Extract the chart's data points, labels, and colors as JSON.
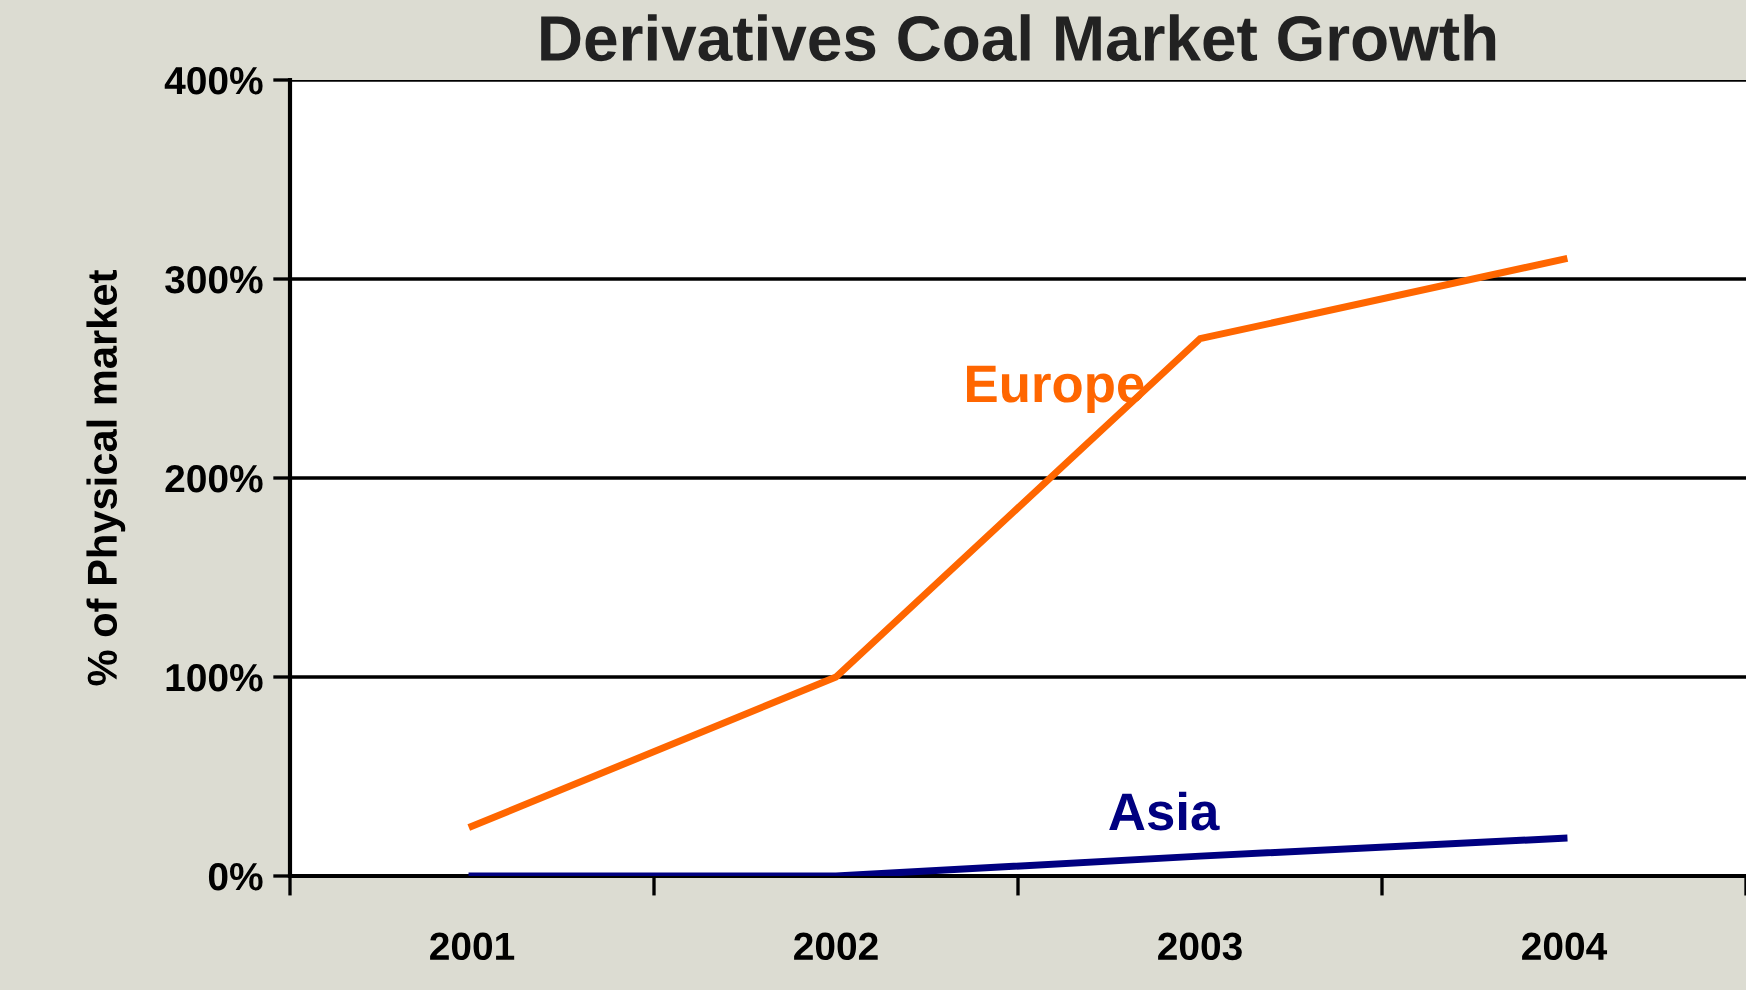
{
  "chart_data": {
    "type": "line",
    "title": "Derivatives Coal Market Growth",
    "ylabel": "% of Physical market",
    "categories": [
      "2001",
      "2002",
      "2003",
      "2004"
    ],
    "series": [
      {
        "name": "Europe",
        "color": "#ff6600",
        "values": [
          25,
          100,
          270,
          310
        ]
      },
      {
        "name": "Asia",
        "color": "#000080",
        "values": [
          0,
          0,
          10,
          19
        ]
      }
    ],
    "ylim": [
      0,
      400
    ],
    "yticks": [
      {
        "value": 0,
        "label": "0%"
      },
      {
        "value": 100,
        "label": "100%"
      },
      {
        "value": 200,
        "label": "200%"
      },
      {
        "value": 300,
        "label": "300%"
      },
      {
        "value": 400,
        "label": "400%"
      }
    ],
    "grid": "y",
    "legend": false,
    "marker": "none",
    "line_style": "solid"
  }
}
